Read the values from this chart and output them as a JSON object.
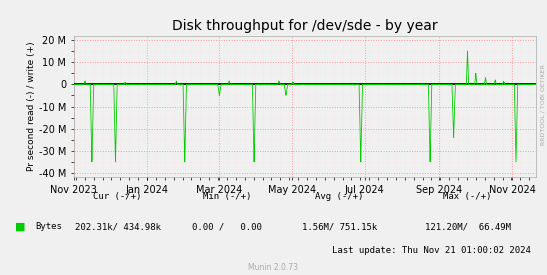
{
  "title": "Disk throughput for /dev/sde - by year",
  "ylabel": "Pr second read (-) / write (+)",
  "background_color": "#f0f0f0",
  "plot_bg_color": "#f0f0f0",
  "grid_color": "#ff9999",
  "grid_minor_color": "#ffdddd",
  "line_color": "#00cc00",
  "zero_line_color": "#000000",
  "ylim": [
    -42000000,
    22000000
  ],
  "yticks": [
    -40000000,
    -30000000,
    -20000000,
    -10000000,
    0,
    10000000,
    20000000
  ],
  "ytick_labels": [
    "-40 M",
    "-30 M",
    "-20 M",
    "-10 M",
    "0",
    "10 M",
    "20 M"
  ],
  "xstart": 1698796800,
  "xend": 1732147200,
  "xticks": [
    1698796800,
    1704067200,
    1709251200,
    1714521600,
    1719792000,
    1725148800,
    1730419200
  ],
  "xtick_labels": [
    "Nov 2023",
    "Jan 2024",
    "Mar 2024",
    "May 2024",
    "Jul 2024",
    "Sep 2024",
    "Nov 2024"
  ],
  "legend_label": "Bytes",
  "legend_color": "#00cc00",
  "cur_neg": "202.31k",
  "cur_pos": "434.98k",
  "min_neg": "0.00",
  "min_pos": "0.00",
  "avg_neg": "1.56M",
  "avg_pos": "751.15k",
  "max_neg": "121.20M",
  "max_pos": "66.49M",
  "last_update": "Last update: Thu Nov 21 01:00:02 2024",
  "munin_version": "Munin 2.0.73",
  "rrdtool_label": "RRDTOOL / TOBI OETIKER",
  "title_fontsize": 10,
  "label_fontsize": 6.5,
  "tick_fontsize": 7
}
